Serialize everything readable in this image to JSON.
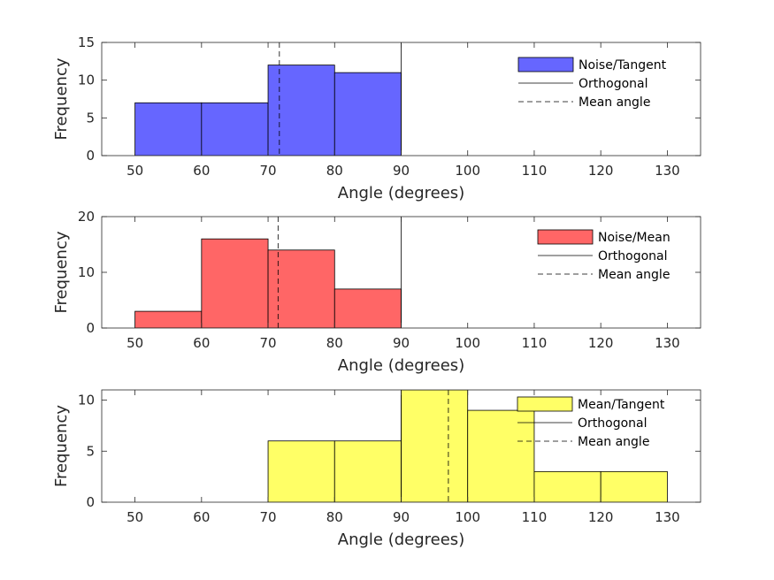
{
  "chart_data": [
    {
      "type": "bar",
      "title": "",
      "xlabel": "Angle (degrees)",
      "ylabel": "Frequency",
      "xlim": [
        45,
        135
      ],
      "ylim": [
        0,
        15
      ],
      "xticks": [
        50,
        60,
        70,
        80,
        90,
        100,
        110,
        120,
        130
      ],
      "yticks": [
        0,
        5,
        10,
        15
      ],
      "bin_edges": [
        50,
        60,
        70,
        80,
        90
      ],
      "values": [
        7,
        7,
        12,
        11
      ],
      "color": "#6666ff",
      "orthogonal_x": 90,
      "mean_angle_x": 71.7,
      "legend": {
        "position": "top-right",
        "entries": [
          "Noise/Tangent",
          "Orthogonal",
          "Mean angle"
        ]
      }
    },
    {
      "type": "bar",
      "title": "",
      "xlabel": "Angle (degrees)",
      "ylabel": "Frequency",
      "xlim": [
        45,
        135
      ],
      "ylim": [
        0,
        20
      ],
      "xticks": [
        50,
        60,
        70,
        80,
        90,
        100,
        110,
        120,
        130
      ],
      "yticks": [
        0,
        10,
        20
      ],
      "bin_edges": [
        50,
        60,
        70,
        80,
        90
      ],
      "values": [
        3,
        16,
        14,
        7
      ],
      "color": "#ff6666",
      "orthogonal_x": 90,
      "mean_angle_x": 71.5,
      "legend": {
        "position": "top-right",
        "entries": [
          "Noise/Mean",
          "Orthogonal",
          "Mean angle"
        ]
      }
    },
    {
      "type": "bar",
      "title": "",
      "xlabel": "Angle (degrees)",
      "ylabel": "Frequency",
      "xlim": [
        45,
        135
      ],
      "ylim": [
        0,
        11
      ],
      "xticks": [
        50,
        60,
        70,
        80,
        90,
        100,
        110,
        120,
        130
      ],
      "yticks": [
        0,
        5,
        10
      ],
      "bin_edges": [
        70,
        80,
        90,
        100,
        110,
        120,
        130
      ],
      "values": [
        6,
        6,
        11,
        9,
        3,
        3
      ],
      "color": "#ffff66",
      "orthogonal_x": 90,
      "mean_angle_x": 97.1,
      "legend": {
        "position": "top-right",
        "entries": [
          "Mean/Tangent",
          "Orthogonal",
          "Mean angle"
        ]
      }
    }
  ]
}
